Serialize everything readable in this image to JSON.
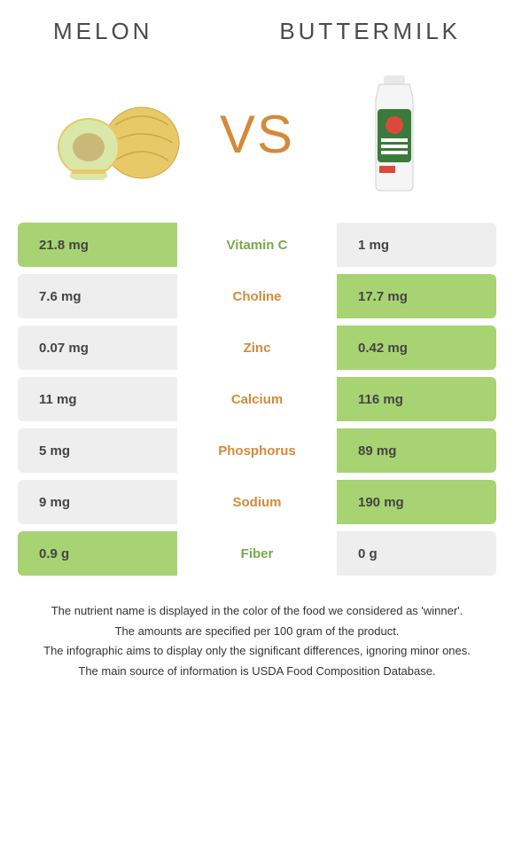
{
  "header": {
    "left_title": "Melon",
    "right_title": "Buttermilk",
    "vs_label": "VS"
  },
  "colors": {
    "left_winner_bg": "#a8d373",
    "right_winner_bg": "#a8d373",
    "left_winner_text": "#7aa84a",
    "right_winner_text": "#d48a3a",
    "neutral_bg": "#eeeeee",
    "neutral_text": "#444444"
  },
  "rows": [
    {
      "nutrient": "Vitamin C",
      "left": "21.8 mg",
      "right": "1 mg",
      "winner": "left"
    },
    {
      "nutrient": "Choline",
      "left": "7.6 mg",
      "right": "17.7 mg",
      "winner": "right"
    },
    {
      "nutrient": "Zinc",
      "left": "0.07 mg",
      "right": "0.42 mg",
      "winner": "right"
    },
    {
      "nutrient": "Calcium",
      "left": "11 mg",
      "right": "116 mg",
      "winner": "right"
    },
    {
      "nutrient": "Phosphorus",
      "left": "5 mg",
      "right": "89 mg",
      "winner": "right"
    },
    {
      "nutrient": "Sodium",
      "left": "9 mg",
      "right": "190 mg",
      "winner": "right"
    },
    {
      "nutrient": "Fiber",
      "left": "0.9 g",
      "right": "0 g",
      "winner": "left"
    }
  ],
  "footnotes": [
    "The nutrient name is displayed in the color of the food we considered as 'winner'.",
    "The amounts are specified per 100 gram of the product.",
    "The infographic aims to display only the significant differences, ignoring minor ones.",
    "The main source of information is USDA Food Composition Database."
  ]
}
